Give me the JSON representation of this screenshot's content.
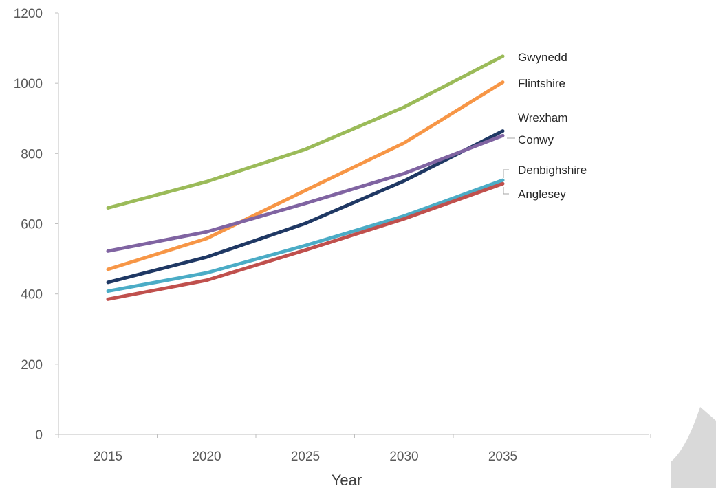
{
  "chart_data": {
    "type": "line",
    "xlabel": "Year",
    "ylabel": "",
    "ylim": [
      0,
      1200
    ],
    "yticks": [
      0,
      200,
      400,
      600,
      800,
      1000,
      1200
    ],
    "xticks": [
      2015,
      2020,
      2025,
      2030,
      2035
    ],
    "x": [
      2015,
      2020,
      2025,
      2030,
      2035
    ],
    "grid": false,
    "legend": "direct labels at line ends",
    "series": [
      {
        "name": "Gwynedd",
        "color": "#9BBB59",
        "values": [
          645,
          720,
          812,
          932,
          1077
        ]
      },
      {
        "name": "Flintshire",
        "color": "#F79646",
        "values": [
          470,
          558,
          695,
          830,
          1003
        ]
      },
      {
        "name": "Wrexham",
        "color": "#1F3864",
        "values": [
          433,
          505,
          601,
          722,
          864
        ]
      },
      {
        "name": "Conwy",
        "color": "#8064A2",
        "values": [
          522,
          577,
          658,
          743,
          851
        ]
      },
      {
        "name": "Denbighshire",
        "color": "#4BACC6",
        "values": [
          408,
          460,
          538,
          622,
          724
        ]
      },
      {
        "name": "Anglesey",
        "color": "#C0504D",
        "values": [
          385,
          439,
          525,
          614,
          714
        ]
      }
    ]
  }
}
